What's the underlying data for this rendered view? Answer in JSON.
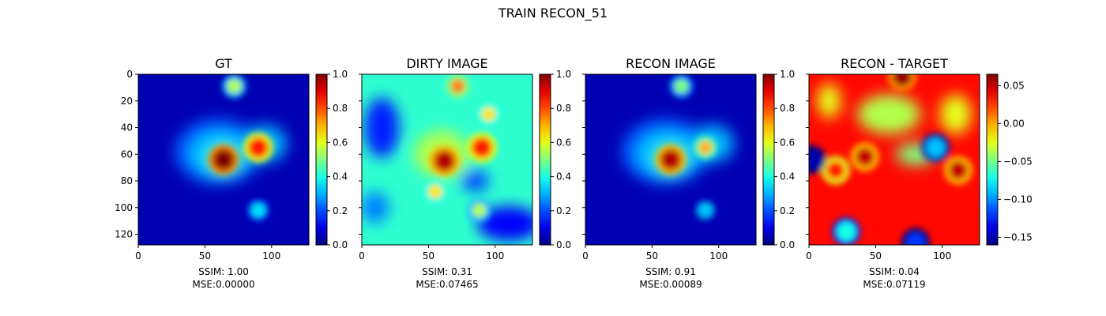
{
  "figure": {
    "title": "TRAIN RECON_51"
  },
  "colors": {
    "colormap": "jet",
    "axis": "#000000",
    "background": "#ffffff"
  },
  "chart_data": [
    {
      "type": "heatmap",
      "title": "GT",
      "xlim": [
        0,
        128
      ],
      "ylim": [
        128,
        0
      ],
      "xticks": [
        "0",
        "50",
        "100"
      ],
      "yticks": [
        "0",
        "20",
        "40",
        "60",
        "80",
        "100",
        "120"
      ],
      "colorbar": {
        "range": [
          0.0,
          1.0
        ],
        "ticks": [
          "0.0",
          "0.2",
          "0.4",
          "0.6",
          "0.8",
          "1.0"
        ]
      },
      "metrics": {
        "ssim": "SSIM: 1.00",
        "mse": "MSE:0.00000"
      },
      "blobs": [
        {
          "x": 64,
          "y": 64,
          "v": 1.0
        },
        {
          "x": 90,
          "y": 55,
          "v": 0.85
        },
        {
          "x": 72,
          "y": 9,
          "v": 0.55
        },
        {
          "x": 90,
          "y": 102,
          "v": 0.35
        }
      ]
    },
    {
      "type": "heatmap",
      "title": "DIRTY IMAGE",
      "xlim": [
        0,
        128
      ],
      "ylim": [
        128,
        0
      ],
      "xticks": [
        "0",
        "50",
        "100"
      ],
      "yticks": [],
      "colorbar": {
        "range": [
          0.0,
          1.0
        ],
        "ticks": [
          "0.0",
          "0.2",
          "0.4",
          "0.6",
          "0.8",
          "1.0"
        ]
      },
      "metrics": {
        "ssim": "SSIM: 0.31",
        "mse": "MSE:0.07465"
      },
      "blobs": [
        {
          "x": 62,
          "y": 65,
          "v": 0.95
        },
        {
          "x": 90,
          "y": 55,
          "v": 0.85
        },
        {
          "x": 72,
          "y": 9,
          "v": 0.75
        },
        {
          "x": 95,
          "y": 30,
          "v": 0.65
        },
        {
          "x": 55,
          "y": 88,
          "v": 0.65
        },
        {
          "x": 88,
          "y": 102,
          "v": 0.55
        }
      ]
    },
    {
      "type": "heatmap",
      "title": "RECON IMAGE",
      "xlim": [
        0,
        128
      ],
      "ylim": [
        128,
        0
      ],
      "xticks": [
        "0",
        "50",
        "100"
      ],
      "yticks": [],
      "colorbar": {
        "range": [
          0.0,
          1.0
        ],
        "ticks": [
          "0.0",
          "0.2",
          "0.4",
          "0.6",
          "0.8",
          "1.0"
        ]
      },
      "metrics": {
        "ssim": "SSIM: 0.91",
        "mse": "MSE:0.00089"
      },
      "blobs": [
        {
          "x": 64,
          "y": 64,
          "v": 0.95
        },
        {
          "x": 90,
          "y": 55,
          "v": 0.7
        },
        {
          "x": 72,
          "y": 9,
          "v": 0.5
        },
        {
          "x": 90,
          "y": 102,
          "v": 0.32
        }
      ]
    },
    {
      "type": "heatmap",
      "title": "RECON - TARGET",
      "xlim": [
        0,
        128
      ],
      "ylim": [
        128,
        0
      ],
      "xticks": [
        "0",
        "50",
        "100"
      ],
      "yticks": [],
      "colorbar": {
        "range": [
          -0.16,
          0.065
        ],
        "ticks": [
          "−0.15",
          "−0.10",
          "−0.05",
          "0.00",
          "0.05"
        ],
        "tick_values": [
          -0.15,
          -0.1,
          -0.05,
          0.0,
          0.05
        ]
      },
      "metrics": {
        "ssim": "SSIM: 0.04",
        "mse": "MSE:0.07119"
      },
      "blobs": [
        {
          "x": 42,
          "y": 62,
          "v": 0.05
        },
        {
          "x": 112,
          "y": 72,
          "v": 0.05
        },
        {
          "x": 70,
          "y": 2,
          "v": 0.06
        },
        {
          "x": 20,
          "y": 72,
          "v": 0.03
        },
        {
          "x": 95,
          "y": 55,
          "v": -0.09
        },
        {
          "x": 2,
          "y": 64,
          "v": -0.15
        },
        {
          "x": 80,
          "y": 126,
          "v": -0.12
        },
        {
          "x": 28,
          "y": 118,
          "v": -0.07
        }
      ]
    }
  ]
}
